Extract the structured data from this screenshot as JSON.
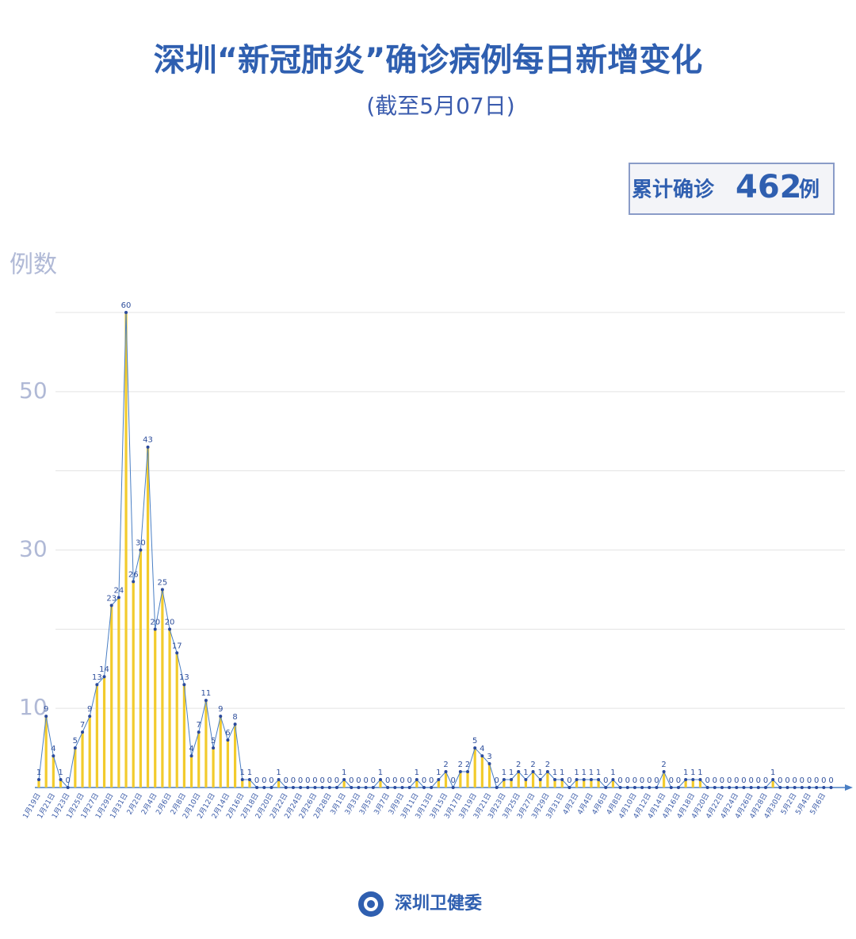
{
  "chart_data": {
    "type": "line",
    "title": "深圳“新冠肺炎”确诊病例每日新增变化",
    "subtitle": "(截至5月07日)",
    "total_prefix": "累计确诊",
    "total": 462,
    "total_suffix": "例",
    "y_label": "例数",
    "source": "深圳卫健委",
    "categories": [
      "1月19日",
      null,
      "1月21日",
      null,
      "1月23日",
      null,
      "1月25日",
      null,
      "1月27日",
      null,
      "1月29日",
      null,
      "1月31日",
      null,
      "2月2日",
      null,
      "2月4日",
      null,
      "2月6日",
      null,
      "2月8日",
      null,
      "2月10日",
      null,
      "2月12日",
      null,
      "2月14日",
      null,
      "2月16日",
      null,
      "2月18日",
      null,
      "2月20日",
      null,
      "2月22日",
      null,
      "2月24日",
      null,
      "2月26日",
      null,
      "2月28日",
      null,
      "3月1日",
      null,
      "3月3日",
      null,
      "3月5日",
      null,
      "3月7日",
      null,
      "3月9日",
      null,
      "3月11日",
      null,
      "3月13日",
      null,
      "3月15日",
      null,
      "3月17日",
      null,
      "3月19日",
      null,
      "3月21日",
      null,
      "3月23日",
      null,
      "3月25日",
      null,
      "3月27日",
      null,
      "3月29日",
      null,
      "3月31日",
      null,
      "4月2日",
      null,
      "4月4日",
      null,
      "4月6日",
      null,
      "4月8日",
      null,
      "4月10日",
      null,
      "4月12日",
      null,
      "4月14日",
      null,
      "4月16日",
      null,
      "4月18日",
      null,
      "4月20日",
      null,
      "4月22日",
      null,
      "4月24日",
      null,
      "4月26日",
      null,
      "4月28日",
      null,
      "4月30日",
      null,
      "5月2日",
      null,
      "5月4日",
      null,
      "5月6日",
      null
    ],
    "values": [
      1,
      9,
      4,
      1,
      0,
      5,
      7,
      9,
      13,
      14,
      23,
      24,
      60,
      26,
      30,
      43,
      20,
      25,
      20,
      17,
      13,
      4,
      7,
      11,
      5,
      9,
      6,
      8,
      1,
      1,
      0,
      0,
      0,
      1,
      0,
      0,
      0,
      0,
      0,
      0,
      0,
      0,
      1,
      0,
      0,
      0,
      0,
      1,
      0,
      0,
      0,
      0,
      1,
      0,
      0,
      1,
      2,
      0,
      2,
      2,
      5,
      4,
      3,
      0,
      1,
      1,
      2,
      1,
      2,
      1,
      2,
      1,
      1,
      0,
      1,
      1,
      1,
      1,
      0,
      1,
      0,
      0,
      0,
      0,
      0,
      0,
      2,
      0,
      0,
      1,
      1,
      1,
      0,
      0,
      0,
      0,
      0,
      0,
      0,
      0,
      0,
      1,
      0,
      0,
      0,
      0,
      0,
      0,
      0,
      0
    ],
    "line_color": "#4a7fc4",
    "point_color": "#2b4a9c",
    "bar_color": "#f2cb2c",
    "ylim": [
      0,
      60
    ],
    "yticks": [
      10,
      30,
      50
    ],
    "grid_yticks": [
      10,
      20,
      30,
      40,
      50,
      60
    ],
    "grid": true
  }
}
